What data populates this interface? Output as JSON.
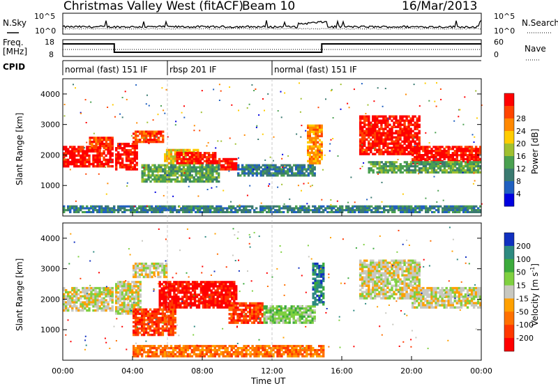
{
  "header": {
    "radar": "Christmas Valley West (fitACF)",
    "beam": "Beam 10",
    "date": "16/Mar/2013"
  },
  "left_labels": {
    "nsky": "N.Sky",
    "freq": "Freq.",
    "mhz": "[MHz]",
    "cpid": "CPID"
  },
  "right_labels": {
    "nsearch": "N.Search",
    "nave": "Nave"
  },
  "colors": {
    "power_scale": [
      "#0000e0",
      "#2060c0",
      "#3a7a70",
      "#4aa050",
      "#a0c030",
      "#ffcc00",
      "#ff8800",
      "#ff4400",
      "#ff0000"
    ],
    "velocity_scale": [
      "#1030c0",
      "#2d8a80",
      "#3caa3c",
      "#7fd040",
      "#c8c8c0",
      "#ffa000",
      "#ff7000",
      "#ff3800",
      "#ff0000"
    ]
  },
  "chart_data": [
    {
      "type": "line",
      "panel": "noise",
      "xlabel": "",
      "x_range": [
        0,
        24
      ],
      "left_ticks": [
        "10^5",
        "10^0"
      ],
      "right_ticks": [
        "10^5",
        "10^0"
      ],
      "series": [
        {
          "name": "N.Sky"
        },
        {
          "name": "N.Search"
        }
      ]
    },
    {
      "type": "line",
      "panel": "frequency",
      "x_range": [
        0,
        24
      ],
      "left_ticks": [
        "18",
        "8"
      ],
      "right_ticks": [
        "60",
        "0"
      ],
      "x": [
        0,
        2.95,
        2.95,
        14.85,
        14.85,
        24
      ],
      "freq_mhz": [
        15.5,
        15.5,
        10.5,
        10.5,
        15.5,
        15.5
      ],
      "series": [
        {
          "name": "Nave"
        }
      ]
    },
    {
      "type": "table",
      "panel": "cpid",
      "segments": [
        {
          "start": 0,
          "end": 6,
          "label": "normal (fast) 151 IF"
        },
        {
          "start": 6,
          "end": 12,
          "label": "rbsp 201 IF"
        },
        {
          "start": 12,
          "end": 24,
          "label": "normal (fast) 151 IF"
        }
      ]
    },
    {
      "type": "heatmap",
      "panel": "power",
      "ylabel": "Slant Range [km]",
      "y_ticks": [
        "1000",
        "2000",
        "3000",
        "4000"
      ],
      "ylim": [
        0,
        4500
      ],
      "colorbar_label": "Power [dB]",
      "colorbar_ticks": [
        "4",
        "8",
        "12",
        "16",
        "20",
        "24",
        "28"
      ],
      "bands": [
        {
          "t0": 0.0,
          "t1": 2.9,
          "r0": 1600,
          "r1": 2300,
          "level": 8
        },
        {
          "t0": 1.5,
          "t1": 2.9,
          "r0": 2200,
          "r1": 2600,
          "level": 7
        },
        {
          "t0": 3.0,
          "t1": 4.3,
          "r0": 1500,
          "r1": 2400,
          "level": 8
        },
        {
          "t0": 4.0,
          "t1": 5.8,
          "r0": 2400,
          "r1": 2800,
          "level": 7
        },
        {
          "t0": 5.8,
          "t1": 7.8,
          "r0": 1700,
          "r1": 2200,
          "level": 5
        },
        {
          "t0": 6.5,
          "t1": 8.8,
          "r0": 1700,
          "r1": 2100,
          "level": 8
        },
        {
          "t0": 8.8,
          "t1": 10.0,
          "r0": 1500,
          "r1": 1900,
          "level": 8
        },
        {
          "t0": 4.5,
          "t1": 9.0,
          "r0": 1100,
          "r1": 1700,
          "level": 3
        },
        {
          "t0": 10.0,
          "t1": 14.5,
          "r0": 1300,
          "r1": 1700,
          "level": 2
        },
        {
          "t0": 14.0,
          "t1": 14.9,
          "r0": 1700,
          "r1": 3000,
          "level": 6
        },
        {
          "t0": 17.0,
          "t1": 20.5,
          "r0": 2000,
          "r1": 3300,
          "level": 8
        },
        {
          "t0": 20.0,
          "t1": 24.0,
          "r0": 1700,
          "r1": 2300,
          "level": 8
        },
        {
          "t0": 17.5,
          "t1": 24.0,
          "r0": 1400,
          "r1": 1800,
          "level": 3
        },
        {
          "t0": 0.0,
          "t1": 24.0,
          "r0": 100,
          "r1": 350,
          "level": 2
        }
      ]
    },
    {
      "type": "heatmap",
      "panel": "velocity",
      "ylabel": "Slant Range [km]",
      "y_ticks": [
        "1000",
        "2000",
        "3000",
        "4000"
      ],
      "ylim": [
        0,
        4500
      ],
      "xlabel": "Time UT",
      "x_ticks": [
        "00:00",
        "04:00",
        "08:00",
        "12:00",
        "16:00",
        "20:00",
        "00:00"
      ],
      "colorbar_label": "Velocity [m s^-1]",
      "colorbar_ticks": [
        "200",
        "100",
        "50",
        "15",
        "-15",
        "-50",
        "-100",
        "-200"
      ],
      "bands": [
        {
          "t0": 0.0,
          "t1": 2.9,
          "r0": 1600,
          "r1": 2400,
          "level": 4
        },
        {
          "t0": 3.0,
          "t1": 4.5,
          "r0": 1500,
          "r1": 2600,
          "level": 4
        },
        {
          "t0": 4.0,
          "t1": 6.0,
          "r0": 2700,
          "r1": 3200,
          "level": 4
        },
        {
          "t0": 4.0,
          "t1": 6.5,
          "r0": 800,
          "r1": 1700,
          "level": 7
        },
        {
          "t0": 5.5,
          "t1": 10.0,
          "r0": 1700,
          "r1": 2600,
          "level": 8
        },
        {
          "t0": 9.5,
          "t1": 11.5,
          "r0": 1200,
          "r1": 1900,
          "level": 7
        },
        {
          "t0": 11.5,
          "t1": 14.5,
          "r0": 1200,
          "r1": 1800,
          "level": 3
        },
        {
          "t0": 14.3,
          "t1": 15.0,
          "r0": 1800,
          "r1": 3200,
          "level": 1
        },
        {
          "t0": 17.0,
          "t1": 20.5,
          "r0": 2000,
          "r1": 3300,
          "level": 4
        },
        {
          "t0": 20.0,
          "t1": 24.0,
          "r0": 1700,
          "r1": 2400,
          "level": 4
        },
        {
          "t0": 4.0,
          "t1": 15.0,
          "r0": 100,
          "r1": 500,
          "level": 6
        }
      ]
    }
  ]
}
